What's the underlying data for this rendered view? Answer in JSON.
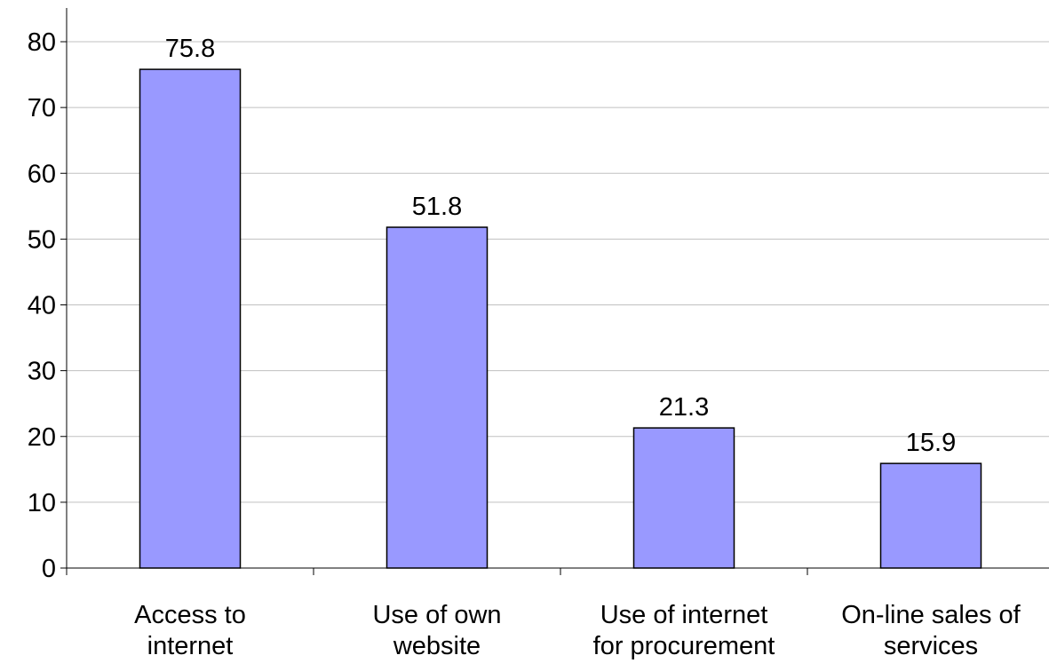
{
  "chart_data": {
    "type": "bar",
    "categories": [
      [
        "Access to",
        "internet"
      ],
      [
        "Use of own",
        "website"
      ],
      [
        "Use of internet",
        "for procurement"
      ],
      [
        "On-line sales of",
        "services"
      ]
    ],
    "values": [
      75.8,
      51.8,
      21.3,
      15.9
    ],
    "data_labels": [
      "75.8",
      "51.8",
      "21.3",
      "15.9"
    ],
    "ylim": [
      0,
      80
    ],
    "yticks": [
      0,
      10,
      20,
      30,
      40,
      50,
      60,
      70,
      80
    ],
    "grid": true,
    "bar_color": "#9999ff",
    "bar_stroke": "#000000",
    "gridline_color": "#c0c0c0"
  }
}
